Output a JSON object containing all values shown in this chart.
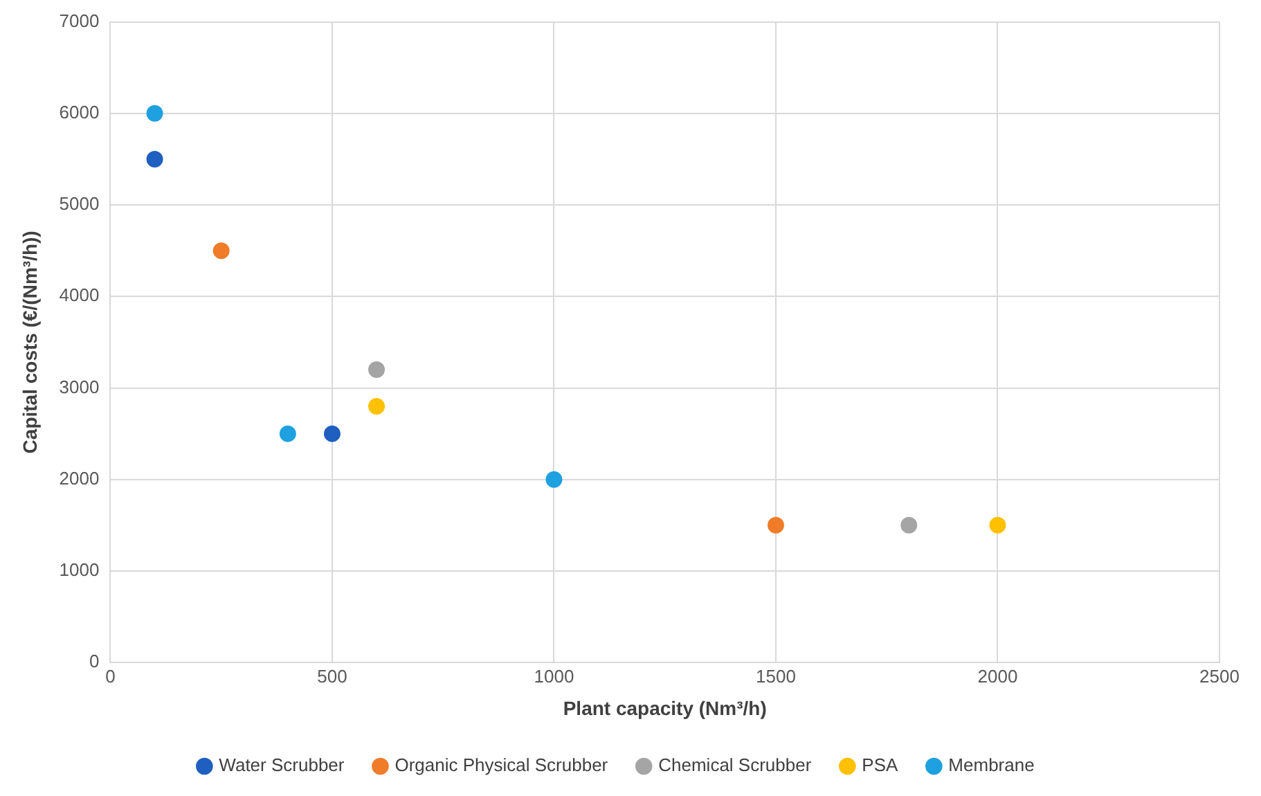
{
  "chart_data": {
    "type": "scatter",
    "xlabel": "Plant capacity (Nm³/h)",
    "ylabel": "Capital costs (€/(Nm³/h))",
    "xlim": [
      0,
      2500
    ],
    "xticks": [
      0,
      500,
      1000,
      1500,
      2000,
      2500
    ],
    "ylim": [
      0,
      7000
    ],
    "yticks": [
      0,
      1000,
      2000,
      3000,
      4000,
      5000,
      6000,
      7000
    ],
    "grid": true,
    "legend": "bottom",
    "marker": "circle",
    "series": [
      {
        "name": "Water Scrubber",
        "color": "#1f5fbf",
        "x": [
          100,
          500
        ],
        "values": [
          5500,
          2500
        ]
      },
      {
        "name": "Organic Physical Scrubber",
        "color": "#f07c2a",
        "x": [
          250,
          1500
        ],
        "values": [
          4500,
          1500
        ]
      },
      {
        "name": "Chemical Scrubber",
        "color": "#a5a5a5",
        "x": [
          600,
          1800
        ],
        "values": [
          3200,
          1500
        ]
      },
      {
        "name": "PSA",
        "color": "#ffc000",
        "x": [
          600,
          2000
        ],
        "values": [
          2800,
          1500
        ]
      },
      {
        "name": "Membrane",
        "color": "#1fa0e0",
        "x": [
          100,
          400,
          1000
        ],
        "values": [
          6000,
          2500,
          2000
        ]
      }
    ]
  }
}
